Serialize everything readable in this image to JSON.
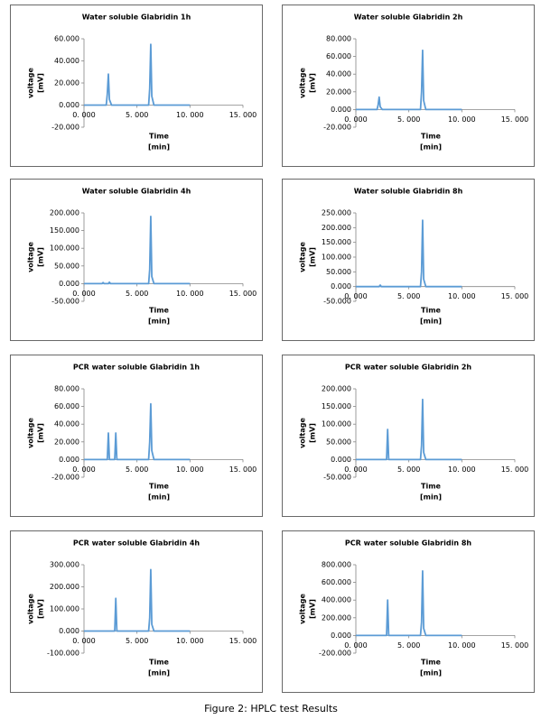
{
  "caption": "Figure 2: HPLC test Results",
  "chart_data": [
    {
      "type": "line",
      "title": "Water soluble Glabridin 1h",
      "xlabel": "Time",
      "xunit": "[min]",
      "ylabel": "voltage",
      "yunit": "[mV]",
      "color": "#5b9bd5",
      "x": [
        0,
        2.1,
        2.2,
        2.3,
        2.4,
        2.6,
        6.1,
        6.2,
        6.3,
        6.4,
        6.6,
        10
      ],
      "values": [
        0,
        0,
        10,
        28,
        5,
        0,
        0,
        15,
        55,
        8,
        0,
        0
      ],
      "xlim": [
        0,
        15
      ],
      "xticks": [
        {
          "value": 0,
          "label": "0. 000"
        },
        {
          "value": 5,
          "label": "5. 000"
        },
        {
          "value": 10,
          "label": "10. 000"
        },
        {
          "value": 15,
          "label": "15. 000"
        }
      ],
      "ylim": [
        -20,
        60
      ],
      "yticks": [
        {
          "value": -20,
          "label": "-20.000"
        },
        {
          "value": 0,
          "label": "0.000"
        },
        {
          "value": 20,
          "label": "20.000"
        },
        {
          "value": 40,
          "label": "40.000"
        },
        {
          "value": 60,
          "label": "60.000"
        }
      ]
    },
    {
      "type": "line",
      "title": "Water soluble Glabridin 2h",
      "xlabel": "Time",
      "xunit": "[min]",
      "ylabel": "voltage",
      "yunit": "[mV]",
      "color": "#5b9bd5",
      "x": [
        0,
        2.0,
        2.1,
        2.2,
        2.3,
        2.5,
        6.1,
        6.2,
        6.3,
        6.4,
        6.6,
        10
      ],
      "values": [
        0,
        0,
        5,
        14,
        3,
        0,
        0,
        20,
        67,
        10,
        0,
        0
      ],
      "xlim": [
        0,
        15
      ],
      "xticks": [
        {
          "value": 0,
          "label": "0. 000"
        },
        {
          "value": 5,
          "label": "5. 000"
        },
        {
          "value": 10,
          "label": "10. 000"
        },
        {
          "value": 15,
          "label": "15. 000"
        }
      ],
      "ylim": [
        -20,
        80
      ],
      "yticks": [
        {
          "value": -20,
          "label": "-20.000"
        },
        {
          "value": 0,
          "label": "0.000"
        },
        {
          "value": 20,
          "label": "20.000"
        },
        {
          "value": 40,
          "label": "40.000"
        },
        {
          "value": 60,
          "label": "60.000"
        },
        {
          "value": 80,
          "label": "80.000"
        }
      ]
    },
    {
      "type": "line",
      "title": "Water soluble Glabridin 4h",
      "xlabel": "Time",
      "xunit": "[min]",
      "ylabel": "voltage",
      "yunit": "[mV]",
      "color": "#5b9bd5",
      "x": [
        0,
        1.7,
        1.8,
        1.9,
        2.3,
        2.4,
        2.5,
        6.1,
        6.2,
        6.3,
        6.4,
        6.6,
        10
      ],
      "values": [
        0,
        0,
        3,
        0,
        0,
        4,
        0,
        0,
        40,
        190,
        20,
        0,
        0
      ],
      "xlim": [
        0,
        15
      ],
      "xticks": [
        {
          "value": 0,
          "label": "0. 000"
        },
        {
          "value": 5,
          "label": "5. 000"
        },
        {
          "value": 10,
          "label": "10. 000"
        },
        {
          "value": 15,
          "label": "15. 000"
        }
      ],
      "ylim": [
        -50,
        200
      ],
      "yticks": [
        {
          "value": -50,
          "label": "-50.000"
        },
        {
          "value": 0,
          "label": "0.000"
        },
        {
          "value": 50,
          "label": "50.000"
        },
        {
          "value": 100,
          "label": "100.000"
        },
        {
          "value": 150,
          "label": "150.000"
        },
        {
          "value": 200,
          "label": "200.000"
        }
      ]
    },
    {
      "type": "line",
      "title": "Water soluble Glabridin 8h",
      "xlabel": "Time",
      "xunit": "[min]",
      "ylabel": "voltage",
      "yunit": "[mV]",
      "color": "#5b9bd5",
      "x": [
        0,
        2.2,
        2.3,
        2.4,
        6.1,
        6.2,
        6.3,
        6.4,
        6.6,
        10
      ],
      "values": [
        0,
        0,
        5,
        0,
        0,
        50,
        225,
        25,
        0,
        0
      ],
      "xlim": [
        0,
        15
      ],
      "xticks": [
        {
          "value": 0,
          "label": "0. 000"
        },
        {
          "value": 5,
          "label": "5. 000"
        },
        {
          "value": 10,
          "label": "10. 000"
        },
        {
          "value": 15,
          "label": "15. 000"
        }
      ],
      "ylim": [
        -50,
        250
      ],
      "yticks": [
        {
          "value": -50,
          "label": "-50.000"
        },
        {
          "value": 0,
          "label": "0.000"
        },
        {
          "value": 50,
          "label": "50.000"
        },
        {
          "value": 100,
          "label": "100.000"
        },
        {
          "value": 150,
          "label": "150.000"
        },
        {
          "value": 200,
          "label": "200.000"
        },
        {
          "value": 250,
          "label": "250.000"
        }
      ]
    },
    {
      "type": "line",
      "title": "PCR water soluble Glabridin 1h",
      "xlabel": "Time",
      "xunit": "[min]",
      "ylabel": "voltage",
      "yunit": "[mV]",
      "color": "#5b9bd5",
      "x": [
        0,
        2.2,
        2.3,
        2.4,
        2.9,
        3.0,
        3.1,
        6.1,
        6.2,
        6.3,
        6.4,
        6.6,
        10
      ],
      "values": [
        0,
        0,
        30,
        0,
        0,
        30,
        0,
        0,
        20,
        63,
        10,
        0,
        0
      ],
      "xlim": [
        0,
        15
      ],
      "xticks": [
        {
          "value": 0,
          "label": "0. 000"
        },
        {
          "value": 5,
          "label": "5. 000"
        },
        {
          "value": 10,
          "label": "10. 000"
        },
        {
          "value": 15,
          "label": "15. 000"
        }
      ],
      "ylim": [
        -20,
        80
      ],
      "yticks": [
        {
          "value": -20,
          "label": "-20.000"
        },
        {
          "value": 0,
          "label": "0.000"
        },
        {
          "value": 20,
          "label": "20.000"
        },
        {
          "value": 40,
          "label": "40.000"
        },
        {
          "value": 60,
          "label": "60.000"
        },
        {
          "value": 80,
          "label": "80.000"
        }
      ]
    },
    {
      "type": "line",
      "title": "PCR water soluble Glabridin 2h",
      "xlabel": "Time",
      "xunit": "[min]",
      "ylabel": "voltage",
      "yunit": "[mV]",
      "color": "#5b9bd5",
      "x": [
        0,
        2.9,
        3.0,
        3.1,
        6.1,
        6.2,
        6.3,
        6.4,
        6.6,
        10
      ],
      "values": [
        0,
        0,
        85,
        0,
        0,
        40,
        170,
        20,
        0,
        0
      ],
      "xlim": [
        0,
        15
      ],
      "xticks": [
        {
          "value": 0,
          "label": "0. 000"
        },
        {
          "value": 5,
          "label": "5. 000"
        },
        {
          "value": 10,
          "label": "10. 000"
        },
        {
          "value": 15,
          "label": "15. 000"
        }
      ],
      "ylim": [
        -50,
        200
      ],
      "yticks": [
        {
          "value": -50,
          "label": "-50.000"
        },
        {
          "value": 0,
          "label": "0.000"
        },
        {
          "value": 50,
          "label": "50.000"
        },
        {
          "value": 100,
          "label": "100.000"
        },
        {
          "value": 150,
          "label": "150.000"
        },
        {
          "value": 200,
          "label": "200.000"
        }
      ]
    },
    {
      "type": "line",
      "title": "PCR water soluble Glabridin 4h",
      "xlabel": "Time",
      "xunit": "[min]",
      "ylabel": "voltage",
      "yunit": "[mV]",
      "color": "#5b9bd5",
      "x": [
        0,
        2.9,
        3.0,
        3.1,
        6.1,
        6.2,
        6.3,
        6.4,
        6.6,
        10
      ],
      "values": [
        0,
        0,
        148,
        0,
        0,
        60,
        278,
        30,
        0,
        0
      ],
      "xlim": [
        0,
        15
      ],
      "xticks": [
        {
          "value": 0,
          "label": "0. 000"
        },
        {
          "value": 5,
          "label": "5. 000"
        },
        {
          "value": 10,
          "label": "10. 000"
        },
        {
          "value": 15,
          "label": "15. 000"
        }
      ],
      "ylim": [
        -100,
        300
      ],
      "yticks": [
        {
          "value": -100,
          "label": "-100.000"
        },
        {
          "value": 0,
          "label": "0.000"
        },
        {
          "value": 100,
          "label": "100.000"
        },
        {
          "value": 200,
          "label": "200.000"
        },
        {
          "value": 300,
          "label": "300.000"
        }
      ]
    },
    {
      "type": "line",
      "title": "PCR water soluble Glabridin 8h",
      "xlabel": "Time",
      "xunit": "[min]",
      "ylabel": "voltage",
      "yunit": "[mV]",
      "color": "#5b9bd5",
      "x": [
        0,
        2.9,
        3.0,
        3.1,
        6.1,
        6.2,
        6.3,
        6.4,
        6.6,
        10
      ],
      "values": [
        0,
        0,
        400,
        0,
        0,
        150,
        730,
        80,
        0,
        0
      ],
      "xlim": [
        0,
        15
      ],
      "xticks": [
        {
          "value": 0,
          "label": "0. 000"
        },
        {
          "value": 5,
          "label": "5. 000"
        },
        {
          "value": 10,
          "label": "10. 000"
        },
        {
          "value": 15,
          "label": "15. 000"
        }
      ],
      "ylim": [
        -200,
        800
      ],
      "yticks": [
        {
          "value": -200,
          "label": "-200.000"
        },
        {
          "value": 0,
          "label": "0.000"
        },
        {
          "value": 200,
          "label": "200.000"
        },
        {
          "value": 400,
          "label": "400.000"
        },
        {
          "value": 600,
          "label": "600.000"
        },
        {
          "value": 800,
          "label": "800.000"
        }
      ]
    }
  ]
}
